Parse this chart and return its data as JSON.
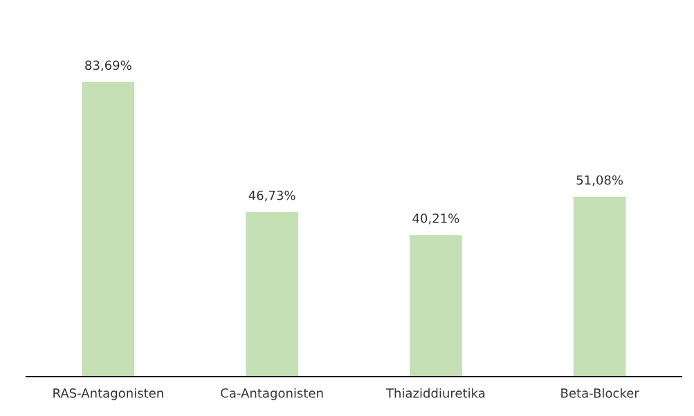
{
  "chart_data": {
    "type": "bar",
    "categories": [
      "RAS-Antagonisten",
      "Ca-Antagonisten",
      "Thiaziddiuretika",
      "Beta-Blocker"
    ],
    "values": [
      83.69,
      46.73,
      40.21,
      51.08
    ],
    "value_labels": [
      "83,69%",
      "46,73%",
      "40,21%",
      "51,08%"
    ],
    "color": "#c5e0b4",
    "grid": false,
    "legend": false
  }
}
